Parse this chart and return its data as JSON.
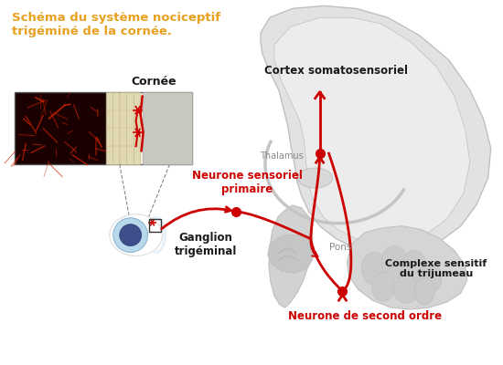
{
  "title": "Schéma du système nociceptif\ntrigéminé de la cornée.",
  "title_color": "#E8A020",
  "title_fontsize": 9.5,
  "bg_color": "#FFFFFF",
  "label_cornee": "Cornée",
  "label_cortex": "Cortex somatosensoriel",
  "label_thalamus": "Thalamus",
  "label_neurone_primaire": "Neurone sensoriel\nprimaire",
  "label_ganglion": "Ganglion\ntrigéminal",
  "label_pons": "Pons",
  "label_complexe": "Complexe sensitif\ndu trijumeau",
  "label_second_ordre": "Neurone de second ordre",
  "red_color": "#CC0000",
  "dark_text": "#1a1a1a",
  "gray_text": "#888888",
  "brain_color": "#E2E2E2",
  "brain_inner": "#D0D0D0",
  "brain_outline": "#C0C0C0",
  "brainstem_color": "#C8C8C8",
  "cerebellum_color": "#D8D8D8"
}
